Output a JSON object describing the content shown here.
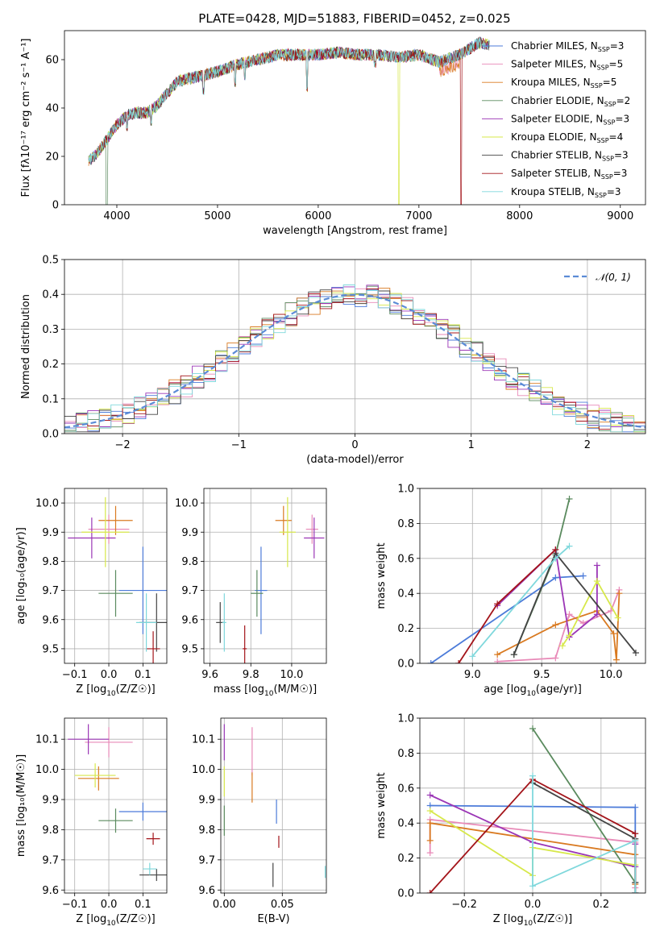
{
  "figure": {
    "title": "PLATE=0428, MJD=51883, FIBERID=0452, z=0.025"
  },
  "colors": [
    "#4c7bd9",
    "#e88ab8",
    "#d97a21",
    "#5a8a5e",
    "#9b36b6",
    "#d7e84a",
    "#444444",
    "#a3141a",
    "#7fd8dc"
  ],
  "chart_data": [
    {
      "id": "spectrum",
      "type": "line",
      "title": "PLATE=0428, MJD=51883, FIBERID=0452, z=0.025",
      "xlabel": "wavelength [Angstrom, rest frame]",
      "ylabel": "Flux [fλ10⁻¹⁷ erg cm⁻² s⁻¹ A⁻¹]",
      "xlim": [
        3480,
        9250
      ],
      "ylim": [
        0,
        72
      ],
      "xticks": [
        4000,
        5000,
        6000,
        7000,
        8000,
        9000
      ],
      "yticks": [
        0,
        20,
        40,
        60
      ],
      "grid": false,
      "legend_position": "right",
      "series": [
        {
          "name": "Chabrier MILES, N_SSP=3",
          "legend": "Chabrier MILES, N",
          "sub": "SSP",
          "suffix": "=3"
        },
        {
          "name": "Salpeter MILES, N_SSP=5",
          "legend": "Salpeter MILES, N",
          "sub": "SSP",
          "suffix": "=5"
        },
        {
          "name": "Kroupa MILES, N_SSP=5",
          "legend": "Kroupa MILES, N",
          "sub": "SSP",
          "suffix": "=5"
        },
        {
          "name": "Chabrier ELODIE, N_SSP=2",
          "legend": "Chabrier ELODIE, N",
          "sub": "SSP",
          "suffix": "=2"
        },
        {
          "name": "Salpeter ELODIE, N_SSP=3",
          "legend": "Salpeter ELODIE, N",
          "sub": "SSP",
          "suffix": "=3"
        },
        {
          "name": "Kroupa ELODIE, N_SSP=4",
          "legend": "Kroupa ELODIE, N",
          "sub": "SSP",
          "suffix": "=4"
        },
        {
          "name": "Chabrier STELIB, N_SSP=3",
          "legend": "Chabrier STELIB, N",
          "sub": "SSP",
          "suffix": "=3"
        },
        {
          "name": "Salpeter STELIB, N_SSP=3",
          "legend": "Salpeter STELIB, N",
          "sub": "SSP",
          "suffix": "=3"
        },
        {
          "name": "Kroupa STELIB, N_SSP=3",
          "legend": "Kroupa STELIB, N",
          "sub": "SSP",
          "suffix": "=3"
        }
      ],
      "continuum_anchors": {
        "x": [
          3720,
          3800,
          3900,
          4000,
          4100,
          4200,
          4300,
          4400,
          4500,
          4600,
          4800,
          5000,
          5200,
          5400,
          5600,
          5800,
          6000,
          6200,
          6400,
          6600,
          6800,
          7000,
          7200,
          7400,
          7600,
          7700
        ],
        "y": [
          18,
          21,
          27,
          33,
          37,
          38,
          38,
          41,
          46,
          51,
          53,
          55,
          58,
          60,
          62,
          62,
          62,
          63,
          62,
          62,
          61,
          62,
          59,
          62,
          67,
          66
        ]
      },
      "dips": {
        "x": [
          3900,
          4102,
          4340,
          4861,
          5175,
          5270,
          5890,
          6563,
          6800,
          7420
        ],
        "y": [
          0,
          32,
          34,
          47,
          50,
          53,
          48,
          58,
          0,
          0
        ]
      }
    },
    {
      "id": "residuals",
      "type": "histogram",
      "xlabel": "(data-model)/error",
      "ylabel": "Normed distribution",
      "xlim": [
        -2.5,
        2.5
      ],
      "ylim": [
        0,
        0.5
      ],
      "xticks": [
        -2,
        -1,
        0,
        1,
        2
      ],
      "yticks": [
        0.0,
        0.1,
        0.2,
        0.3,
        0.4,
        0.5
      ],
      "grid": true,
      "legend_position": "top-right",
      "reference": {
        "name": "𝒩(0, 1)",
        "mean": 0,
        "sigma": 1
      },
      "bin_width": 0.1
    },
    {
      "id": "age-vs-Z",
      "type": "scatter",
      "xlabel_pre": "Z [log",
      "xlabel_sub": "10",
      "xlabel_post": "(Z/Z☉)]",
      "ylabel": "age  [log₁₀(age/yr)]",
      "xlim": [
        -0.13,
        0.17
      ],
      "ylim": [
        9.45,
        10.05
      ],
      "xticks": [
        -0.1,
        0.0,
        0.1
      ],
      "yticks": [
        9.5,
        9.6,
        9.7,
        9.8,
        9.9,
        10.0
      ],
      "grid": true,
      "points": [
        {
          "x": 0.1,
          "y": 9.7,
          "xerr": 0.07,
          "yerr": 0.15
        },
        {
          "x": 0.0,
          "y": 9.91,
          "xerr": 0.06,
          "yerr": 0.05
        },
        {
          "x": 0.02,
          "y": 9.94,
          "xerr": 0.05,
          "yerr": 0.05
        },
        {
          "x": 0.02,
          "y": 9.69,
          "xerr": 0.05,
          "yerr": 0.08
        },
        {
          "x": -0.05,
          "y": 9.88,
          "xerr": 0.07,
          "yerr": 0.07
        },
        {
          "x": -0.01,
          "y": 9.9,
          "xerr": 0.07,
          "yerr": 0.12
        },
        {
          "x": 0.14,
          "y": 9.59,
          "xerr": 0.05,
          "yerr": 0.1
        },
        {
          "x": 0.13,
          "y": 9.5,
          "xerr": 0.02,
          "yerr": 0.06
        },
        {
          "x": 0.11,
          "y": 9.59,
          "xerr": 0.03,
          "yerr": 0.1
        }
      ]
    },
    {
      "id": "age-vs-mass",
      "type": "scatter",
      "xlabel_pre": "mass [log",
      "xlabel_sub": "10",
      "xlabel_post": "(M/M☉)]",
      "xlim": [
        9.57,
        10.17
      ],
      "ylim": [
        9.45,
        10.05
      ],
      "xticks": [
        9.6,
        9.8,
        10.0
      ],
      "yticks": [
        9.5,
        9.6,
        9.7,
        9.8,
        9.9,
        10.0
      ],
      "grid": true,
      "points": [
        {
          "x": 9.85,
          "y": 9.7,
          "xerr": 0.03,
          "yerr": 0.15
        },
        {
          "x": 10.1,
          "y": 9.91,
          "xerr": 0.03,
          "yerr": 0.05
        },
        {
          "x": 9.96,
          "y": 9.94,
          "xerr": 0.04,
          "yerr": 0.05
        },
        {
          "x": 9.83,
          "y": 9.69,
          "xerr": 0.03,
          "yerr": 0.08
        },
        {
          "x": 10.11,
          "y": 9.88,
          "xerr": 0.05,
          "yerr": 0.07
        },
        {
          "x": 9.98,
          "y": 9.9,
          "xerr": 0.04,
          "yerr": 0.12
        },
        {
          "x": 9.65,
          "y": 9.59,
          "xerr": 0.02,
          "yerr": 0.07
        },
        {
          "x": 9.77,
          "y": 9.5,
          "xerr": 0.01,
          "yerr": 0.08
        },
        {
          "x": 9.67,
          "y": 9.59,
          "xerr": 0.01,
          "yerr": 0.1
        }
      ]
    },
    {
      "id": "weight-vs-age",
      "type": "line",
      "xlabel_pre": "age  [log",
      "xlabel_sub": "10",
      "xlabel_post": "(age/yr)]",
      "ylabel": "mass weight",
      "xlim": [
        8.62,
        10.25
      ],
      "ylim": [
        0,
        1
      ],
      "xticks": [
        9.0,
        9.5,
        10.0
      ],
      "yticks": [
        0.0,
        0.2,
        0.4,
        0.6,
        0.8,
        1.0
      ],
      "grid": true,
      "series": [
        {
          "x": [
            8.7,
            9.6,
            9.8
          ],
          "y": [
            0.0,
            0.49,
            0.5
          ]
        },
        {
          "x": [
            9.18,
            9.6,
            9.7,
            9.8,
            10.0,
            10.06
          ],
          "y": [
            0.01,
            0.03,
            0.28,
            0.23,
            0.3,
            0.42
          ]
        },
        {
          "x": [
            9.18,
            9.6,
            9.9,
            10.02,
            10.04,
            10.06
          ],
          "y": [
            0.05,
            0.22,
            0.3,
            0.17,
            0.02,
            0.4
          ]
        },
        {
          "x": [
            9.3,
            9.6,
            9.7
          ],
          "y": [
            0.05,
            0.62,
            0.94
          ]
        },
        {
          "x": [
            9.18,
            9.6,
            9.7,
            9.9,
            9.9
          ],
          "y": [
            0.33,
            0.65,
            0.15,
            0.28,
            0.56
          ]
        },
        {
          "x": [
            9.65,
            9.7,
            9.9,
            10.05
          ],
          "y": [
            0.1,
            0.16,
            0.47,
            0.26
          ]
        },
        {
          "x": [
            9.3,
            9.6,
            10.18
          ],
          "y": [
            0.05,
            0.63,
            0.06
          ]
        },
        {
          "x": [
            8.9,
            9.18,
            9.6
          ],
          "y": [
            0.0,
            0.34,
            0.65
          ]
        },
        {
          "x": [
            9.0,
            9.6,
            9.7
          ],
          "y": [
            0.04,
            0.6,
            0.67
          ]
        }
      ]
    },
    {
      "id": "mass-vs-Z",
      "type": "scatter",
      "xlabel_pre": "Z [log",
      "xlabel_sub": "10",
      "xlabel_post": "(Z/Z☉)]",
      "ylabel": "mass [log₁₀(M/M☉)]",
      "xlim": [
        -0.13,
        0.17
      ],
      "ylim": [
        9.59,
        10.17
      ],
      "xticks": [
        -0.1,
        0.0,
        0.1
      ],
      "yticks": [
        9.6,
        9.7,
        9.8,
        9.9,
        10.0,
        10.1
      ],
      "grid": true,
      "points": [
        {
          "x": 0.1,
          "y": 9.86,
          "xerr": 0.07,
          "yerr": 0.03
        },
        {
          "x": 0.0,
          "y": 10.09,
          "xerr": 0.07,
          "yerr": 0.05
        },
        {
          "x": -0.03,
          "y": 9.97,
          "xerr": 0.06,
          "yerr": 0.04
        },
        {
          "x": 0.02,
          "y": 9.83,
          "xerr": 0.05,
          "yerr": 0.04
        },
        {
          "x": -0.06,
          "y": 10.1,
          "xerr": 0.06,
          "yerr": 0.05
        },
        {
          "x": -0.04,
          "y": 9.98,
          "xerr": 0.06,
          "yerr": 0.04
        },
        {
          "x": 0.14,
          "y": 9.65,
          "xerr": 0.05,
          "yerr": 0.02
        },
        {
          "x": 0.13,
          "y": 9.77,
          "xerr": 0.02,
          "yerr": 0.02
        },
        {
          "x": 0.12,
          "y": 9.67,
          "xerr": 0.02,
          "yerr": 0.02
        }
      ]
    },
    {
      "id": "mass-vs-EBV",
      "type": "scatter",
      "xlabel": "E(B-V)",
      "xlim": [
        -0.003,
        0.088
      ],
      "ylim": [
        9.59,
        10.17
      ],
      "xticks": [
        0.0,
        0.05
      ],
      "yticks": [
        9.6,
        9.7,
        9.8,
        9.9,
        10.0,
        10.1
      ],
      "grid": true,
      "points": [
        {
          "x": 0.045,
          "y": 9.86,
          "xerr": 0,
          "yerr": 0.04
        },
        {
          "x": 0.024,
          "y": 10.06,
          "xerr": 0,
          "yerr": 0.08
        },
        {
          "x": 0.024,
          "y": 9.94,
          "xerr": 0,
          "yerr": 0.05
        },
        {
          "x": 0.0,
          "y": 9.83,
          "xerr": 0,
          "yerr": 0.05
        },
        {
          "x": 0.0,
          "y": 10.09,
          "xerr": 0,
          "yerr": 0.06
        },
        {
          "x": 0.0,
          "y": 9.96,
          "xerr": 0,
          "yerr": 0.05
        },
        {
          "x": 0.042,
          "y": 9.65,
          "xerr": 0,
          "yerr": 0.04
        },
        {
          "x": 0.047,
          "y": 9.76,
          "xerr": 0,
          "yerr": 0.02
        },
        {
          "x": 0.087,
          "y": 9.66,
          "xerr": 0,
          "yerr": 0.02
        }
      ]
    },
    {
      "id": "weight-vs-Z",
      "type": "line",
      "xlabel_pre": "Z [log",
      "xlabel_sub": "10",
      "xlabel_post": "(Z/Z☉)]",
      "ylabel": "mass weight",
      "xlim": [
        -0.33,
        0.33
      ],
      "ylim": [
        0,
        1
      ],
      "xticks": [
        -0.2,
        0.0,
        0.2
      ],
      "yticks": [
        0.0,
        0.2,
        0.4,
        0.6,
        0.8,
        1.0
      ],
      "grid": true,
      "series": [
        {
          "x": [
            -0.3,
            0.3,
            0.3
          ],
          "y": [
            0.5,
            0.49,
            0.0
          ]
        },
        {
          "x": [
            -0.3,
            -0.3,
            0.3,
            0.3
          ],
          "y": [
            0.23,
            0.42,
            0.29,
            0.03
          ]
        },
        {
          "x": [
            -0.3,
            -0.3,
            0.3,
            0.3
          ],
          "y": [
            0.3,
            0.4,
            0.22,
            0.05
          ]
        },
        {
          "x": [
            0.0,
            0.3,
            0.3
          ],
          "y": [
            0.94,
            0.06,
            0.0
          ]
        },
        {
          "x": [
            -0.3,
            0.0,
            0.3,
            0.3
          ],
          "y": [
            0.56,
            0.29,
            0.15,
            0.28
          ]
        },
        {
          "x": [
            -0.3,
            0.0,
            0.0,
            0.3
          ],
          "y": [
            0.47,
            0.1,
            0.26,
            0.16
          ]
        },
        {
          "x": [
            0.0,
            0.3,
            0.3
          ],
          "y": [
            0.63,
            0.31,
            0.06
          ]
        },
        {
          "x": [
            -0.3,
            0.0,
            0.3,
            0.3
          ],
          "y": [
            0.0,
            0.65,
            0.34,
            0.0
          ]
        },
        {
          "x": [
            0.0,
            0.0,
            0.3,
            0.3
          ],
          "y": [
            0.67,
            0.04,
            0.3,
            0.0
          ]
        }
      ]
    }
  ]
}
